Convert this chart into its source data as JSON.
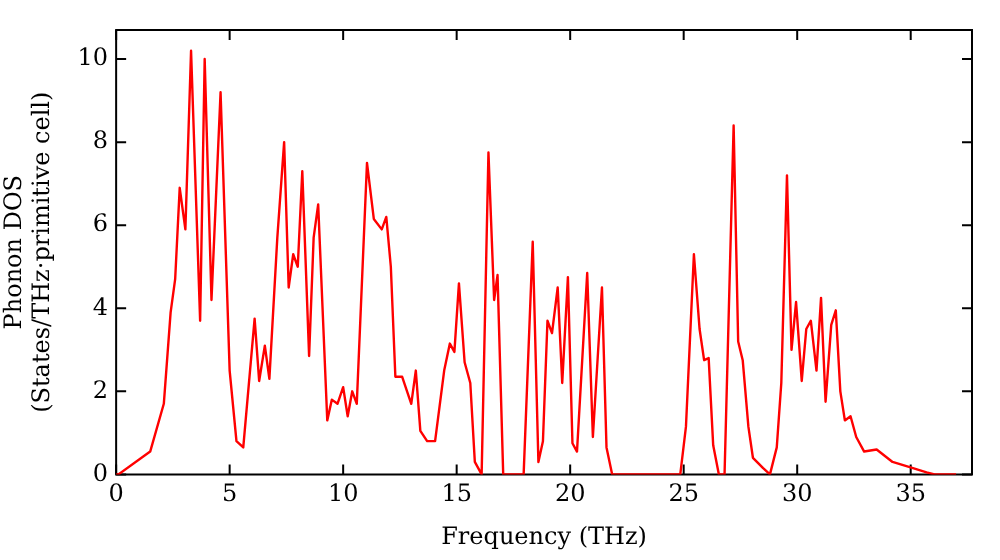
{
  "chart_data": {
    "type": "line",
    "xlabel": "Frequency (THz)",
    "ylabel": "Phonon DOS\n(States/THz·primitive cell)",
    "x": [
      0,
      0.1,
      1.5,
      2.1,
      2.4,
      2.6,
      2.8,
      3.05,
      3.3,
      3.7,
      3.9,
      4.2,
      4.6,
      5.0,
      5.3,
      5.6,
      6.1,
      6.3,
      6.55,
      6.75,
      7.1,
      7.4,
      7.6,
      7.8,
      8.0,
      8.2,
      8.5,
      8.7,
      8.9,
      9.3,
      9.5,
      9.75,
      10.0,
      10.2,
      10.4,
      10.6,
      11.05,
      11.35,
      11.7,
      11.9,
      12.1,
      12.3,
      12.6,
      13.0,
      13.2,
      13.4,
      13.7,
      14.05,
      14.45,
      14.7,
      14.9,
      15.1,
      15.35,
      15.6,
      15.8,
      16.1,
      16.4,
      16.65,
      16.8,
      17.05,
      17.95,
      18.35,
      18.6,
      18.8,
      19.0,
      19.2,
      19.45,
      19.65,
      19.9,
      20.1,
      20.3,
      20.75,
      21.0,
      21.4,
      21.6,
      21.85,
      24.85,
      25.1,
      25.45,
      25.7,
      25.9,
      26.1,
      26.3,
      26.55,
      26.8,
      27.2,
      27.4,
      27.6,
      27.85,
      28.05,
      28.5,
      28.8,
      29.1,
      29.3,
      29.55,
      29.75,
      29.95,
      30.2,
      30.4,
      30.6,
      30.85,
      31.05,
      31.25,
      31.5,
      31.7,
      31.9,
      32.1,
      32.35,
      32.6,
      32.95,
      33.5,
      34.2,
      35.1,
      35.7,
      36.05,
      37.0
    ],
    "series": [
      {
        "color": "#ff0000",
        "values": [
          0,
          0,
          0.55,
          1.7,
          3.9,
          4.7,
          6.9,
          5.9,
          10.2,
          3.7,
          10.0,
          4.2,
          9.2,
          2.5,
          0.8,
          0.65,
          3.75,
          2.25,
          3.1,
          2.3,
          5.7,
          8.0,
          4.5,
          5.3,
          5.0,
          7.3,
          2.85,
          5.7,
          6.5,
          1.3,
          1.8,
          1.7,
          2.1,
          1.4,
          2.0,
          1.7,
          7.5,
          6.15,
          5.9,
          6.2,
          5.0,
          2.35,
          2.35,
          1.7,
          2.5,
          1.05,
          0.8,
          0.8,
          2.5,
          3.15,
          2.95,
          4.6,
          2.7,
          2.2,
          0.3,
          0,
          7.75,
          4.2,
          4.8,
          0,
          0,
          5.6,
          0.3,
          0.8,
          3.7,
          3.4,
          4.5,
          2.2,
          4.75,
          0.75,
          0.55,
          4.85,
          0.9,
          4.5,
          0.65,
          0,
          0,
          1.15,
          5.3,
          3.5,
          2.75,
          2.8,
          0.7,
          0,
          0,
          8.4,
          3.2,
          2.75,
          1.15,
          0.4,
          0.15,
          0,
          0.65,
          2.2,
          7.2,
          3.0,
          4.15,
          2.25,
          3.5,
          3.7,
          2.5,
          4.25,
          1.75,
          3.6,
          3.95,
          2.0,
          1.3,
          1.4,
          0.9,
          0.55,
          0.6,
          0.3,
          0.15,
          0.05,
          0,
          0
        ]
      }
    ],
    "xlim": [
      0,
      37.7
    ],
    "ylim": [
      0,
      10.7
    ],
    "xticks": [
      0,
      5,
      10,
      15,
      20,
      25,
      30,
      35
    ],
    "yticks": [
      0,
      2,
      4,
      6,
      8,
      10
    ],
    "grid": false,
    "legend": false,
    "marker": "none",
    "line_style": "solid"
  }
}
